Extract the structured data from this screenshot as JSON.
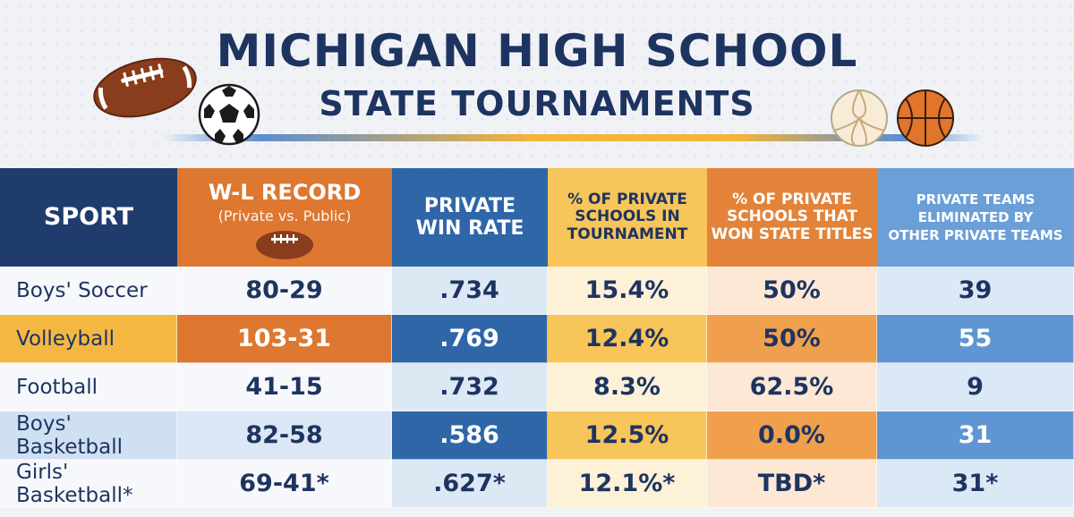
{
  "title": {
    "line1": "MICHIGAN HIGH SCHOOL",
    "line2": "STATE TOURNAMENTS"
  },
  "colors": {
    "navy": "#1e3460",
    "orange": "#de7730",
    "blue": "#2f66a8",
    "yellow": "#f7c55a",
    "light_blue": "#6b9fd8"
  },
  "icons": [
    "football-icon",
    "soccer-ball-icon",
    "volleyball-icon",
    "basketball-icon"
  ],
  "chart_data": {
    "type": "table",
    "title": "MICHIGAN HIGH SCHOOL STATE TOURNAMENTS",
    "columns": [
      {
        "label": "SPORT"
      },
      {
        "label": "W-L RECORD",
        "sublabel": "(Private vs. Public)"
      },
      {
        "label": "PRIVATE\nWIN RATE"
      },
      {
        "label": "% OF PRIVATE\nSCHOOLS IN\nTOURNAMENT"
      },
      {
        "label": "% OF PRIVATE\nSCHOOLS THAT\nWON STATE TITLES"
      },
      {
        "label": "PRIVATE TEAMS\nELIMINATED BY\nOTHER PRIVATE TEAMS"
      }
    ],
    "rows": [
      [
        "Boys' Soccer",
        "80-29",
        ".734",
        "15.4%",
        "50%",
        "39"
      ],
      [
        "Volleyball",
        "103-31",
        ".769",
        "12.4%",
        "50%",
        "55"
      ],
      [
        "Football",
        "41-15",
        ".732",
        "8.3%",
        "62.5%",
        "9"
      ],
      [
        "Boys' Basketball",
        "82-58",
        ".586",
        "12.5%",
        "0.0%",
        "31"
      ],
      [
        "Girls' Basketball*",
        "69-41*",
        ".627*",
        "12.1%*",
        "TBD*",
        "31*"
      ]
    ]
  }
}
